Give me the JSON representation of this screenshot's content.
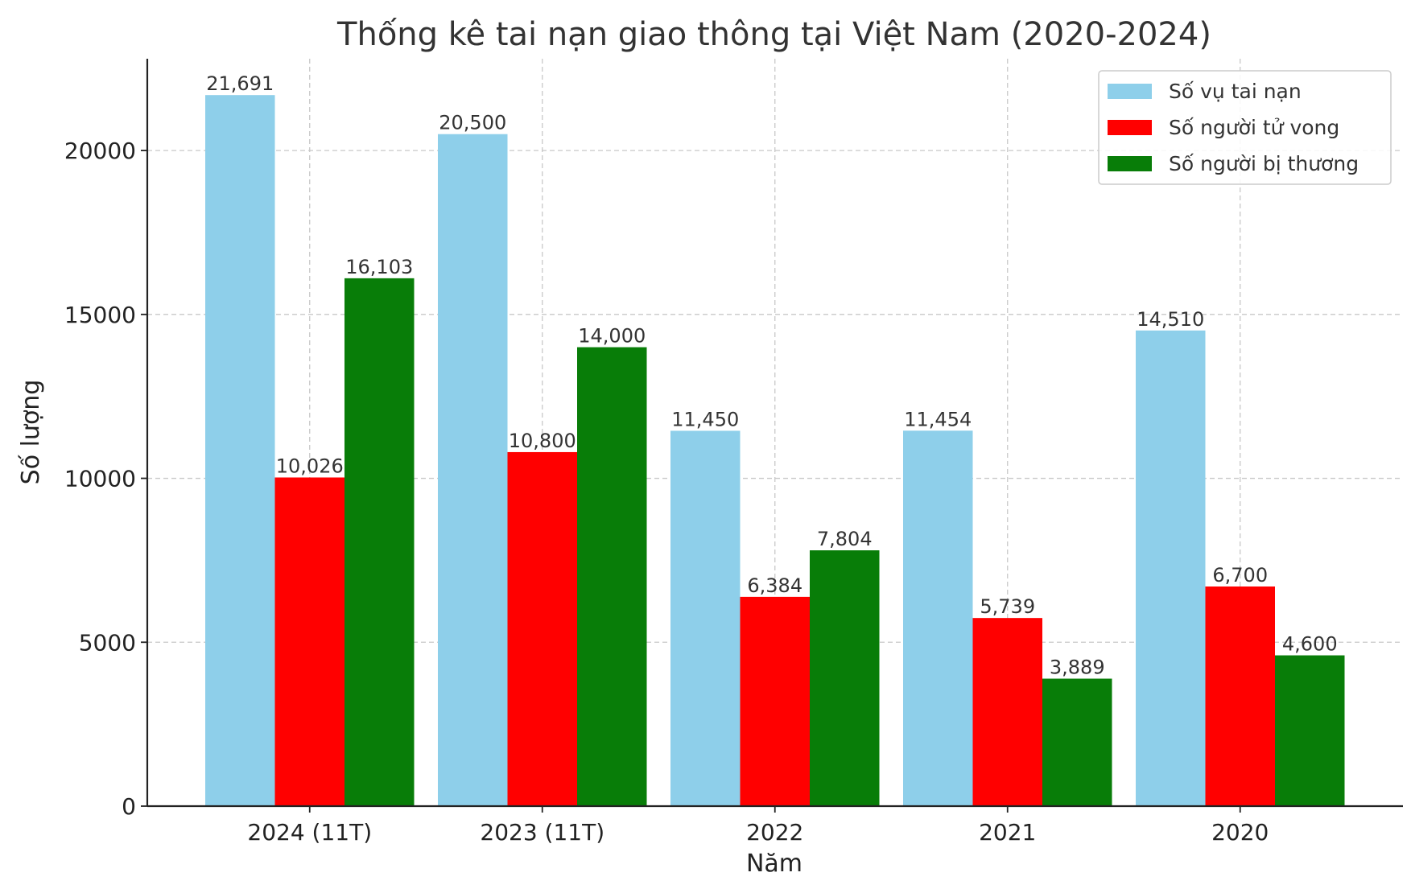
{
  "chart_data": {
    "type": "bar",
    "title": "Thống kê tai nạn giao thông tại Việt Nam (2020-2024)",
    "xlabel": "Năm",
    "ylabel": "Số lượng",
    "categories": [
      "2024 (11T)",
      "2023 (11T)",
      "2022",
      "2021",
      "2020"
    ],
    "series": [
      {
        "name": "Số vụ tai nạn",
        "color": "#8ecfea",
        "values": [
          21691,
          20500,
          11450,
          11454,
          14510
        ],
        "labels": [
          "21,691",
          "20,500",
          "11,450",
          "11,454",
          "14,510"
        ]
      },
      {
        "name": "Số người tử vong",
        "color": "#ff0000",
        "values": [
          10026,
          10800,
          6384,
          5739,
          6700
        ],
        "labels": [
          "10,026",
          "10,800",
          "6,384",
          "5,739",
          "6,700"
        ]
      },
      {
        "name": "Số người bị thương",
        "color": "#087d08",
        "values": [
          16103,
          14000,
          7804,
          3889,
          4600
        ],
        "labels": [
          "16,103",
          "14,000",
          "7,804",
          "3,889",
          "4,600"
        ]
      }
    ],
    "ylim": [
      0,
      22800
    ],
    "yticks": [
      0,
      5000,
      10000,
      15000,
      20000
    ],
    "ytick_labels": [
      "0",
      "5000",
      "10000",
      "15000",
      "20000"
    ],
    "grid": true,
    "legend_position": "top-right"
  }
}
